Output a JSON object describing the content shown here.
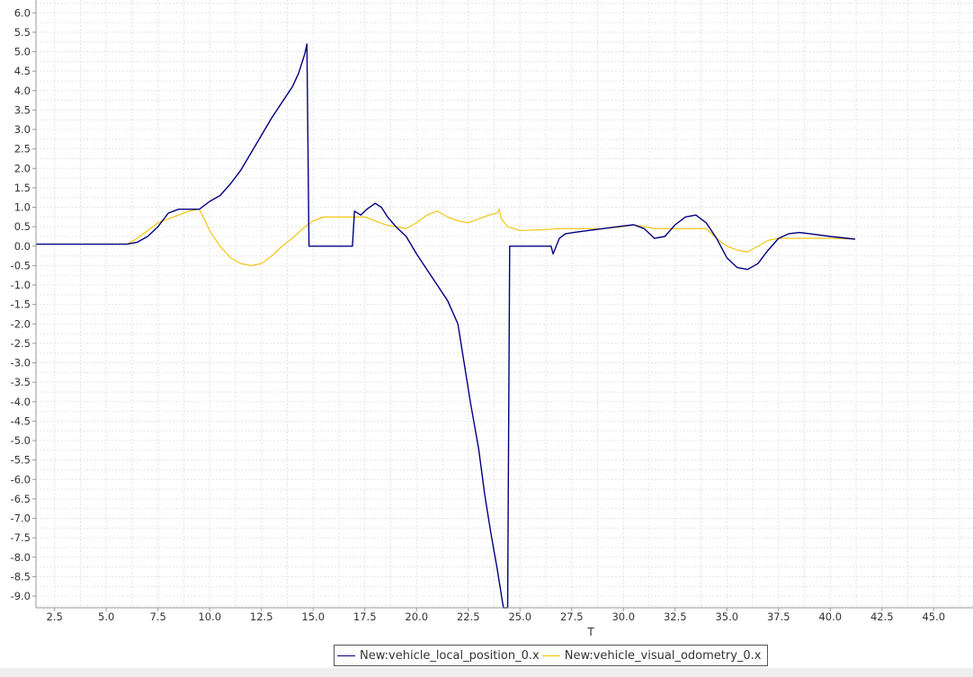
{
  "chart_data": {
    "type": "line",
    "xlabel": "T",
    "ylabel": "",
    "xlim": [
      1.6,
      46.9
    ],
    "ylim": [
      -9.3,
      6.33
    ],
    "xticks": [
      "2.5",
      "5.0",
      "7.5",
      "10.0",
      "12.5",
      "15.0",
      "17.5",
      "20.0",
      "22.5",
      "25.0",
      "27.5",
      "30.0",
      "32.5",
      "35.0",
      "37.5",
      "40.0",
      "42.5",
      "45.0"
    ],
    "yticks": [
      "6.0",
      "5.5",
      "5.0",
      "4.5",
      "4.0",
      "3.5",
      "3.0",
      "2.5",
      "2.0",
      "1.5",
      "1.0",
      "0.5",
      "0.0",
      "-0.5",
      "-1.0",
      "-1.5",
      "-2.0",
      "-2.5",
      "-3.0",
      "-3.5",
      "-4.0",
      "-4.5",
      "-5.0",
      "-5.5",
      "-6.0",
      "-6.5",
      "-7.0",
      "-7.5",
      "-8.0",
      "-8.5",
      "-9.0"
    ],
    "grid": true,
    "legend_position": "bottom-center",
    "series": [
      {
        "name": "New:vehicle_local_position_0.x",
        "color": "#000080",
        "x": [
          1.6,
          5.0,
          6.0,
          6.5,
          7.0,
          7.5,
          8.0,
          8.5,
          9.0,
          9.5,
          10.0,
          10.5,
          11.0,
          11.5,
          12.0,
          12.5,
          13.0,
          13.5,
          14.0,
          14.3,
          14.6,
          14.7,
          14.8,
          16.9,
          17.0,
          17.3,
          17.6,
          18.0,
          18.3,
          18.6,
          19.0,
          19.5,
          20.0,
          20.5,
          21.0,
          21.5,
          22.0,
          22.3,
          22.6,
          23.0,
          23.3,
          23.6,
          23.9,
          24.2,
          24.4,
          24.5,
          26.5,
          26.6,
          26.9,
          27.2,
          27.6,
          28.0,
          29.0,
          30.0,
          30.5,
          31.0,
          31.5,
          32.0,
          32.5,
          33.0,
          33.5,
          34.0,
          34.5,
          35.0,
          35.5,
          36.0,
          36.5,
          37.0,
          37.5,
          38.0,
          38.5,
          39.0,
          40.0,
          41.2
        ],
        "y": [
          0.05,
          0.05,
          0.05,
          0.1,
          0.25,
          0.5,
          0.85,
          0.95,
          0.95,
          0.95,
          1.15,
          1.3,
          1.6,
          1.95,
          2.4,
          2.85,
          3.3,
          3.7,
          4.1,
          4.45,
          4.95,
          5.2,
          0.0,
          0.0,
          0.9,
          0.8,
          0.95,
          1.1,
          1.0,
          0.75,
          0.5,
          0.25,
          -0.2,
          -0.6,
          -1.0,
          -1.4,
          -2.0,
          -3.0,
          -4.0,
          -5.2,
          -6.4,
          -7.4,
          -8.3,
          -9.3,
          -9.3,
          0.0,
          0.0,
          -0.2,
          0.2,
          0.32,
          0.35,
          0.38,
          0.45,
          0.52,
          0.55,
          0.45,
          0.2,
          0.25,
          0.55,
          0.75,
          0.8,
          0.6,
          0.2,
          -0.3,
          -0.55,
          -0.6,
          -0.45,
          -0.1,
          0.2,
          0.32,
          0.35,
          0.32,
          0.25,
          0.18
        ]
      },
      {
        "name": "New:vehicle_visual_odometry_0.x",
        "color": "#f2c200",
        "x": [
          6.0,
          6.5,
          7.0,
          7.5,
          8.0,
          8.5,
          9.0,
          9.5,
          10.0,
          10.5,
          11.0,
          11.5,
          12.0,
          12.5,
          13.0,
          13.5,
          14.0,
          14.5,
          15.0,
          15.5,
          16.0,
          16.5,
          17.0,
          17.5,
          18.0,
          18.5,
          19.0,
          19.5,
          20.0,
          20.5,
          21.0,
          21.5,
          22.0,
          22.5,
          23.0,
          23.5,
          23.9,
          24.0,
          24.1,
          24.4,
          24.7,
          25.0,
          26.0,
          27.0,
          28.0,
          29.0,
          30.0,
          30.5,
          31.0,
          31.5,
          32.0,
          33.0,
          34.0,
          34.5,
          35.0,
          35.5,
          36.0,
          36.5,
          37.0,
          37.5,
          38.0,
          39.0,
          40.0,
          41.2
        ],
        "y": [
          0.05,
          0.2,
          0.4,
          0.6,
          0.7,
          0.8,
          0.9,
          0.95,
          0.4,
          0.0,
          -0.3,
          -0.45,
          -0.5,
          -0.45,
          -0.25,
          0.0,
          0.2,
          0.45,
          0.65,
          0.75,
          0.75,
          0.75,
          0.75,
          0.75,
          0.65,
          0.55,
          0.5,
          0.45,
          0.6,
          0.8,
          0.9,
          0.75,
          0.65,
          0.6,
          0.7,
          0.8,
          0.85,
          0.95,
          0.7,
          0.5,
          0.45,
          0.4,
          0.42,
          0.45,
          0.45,
          0.45,
          0.5,
          0.55,
          0.5,
          0.45,
          0.45,
          0.45,
          0.45,
          0.2,
          0.0,
          -0.1,
          -0.15,
          0.0,
          0.15,
          0.2,
          0.2,
          0.2,
          0.2,
          0.18
        ]
      }
    ]
  }
}
